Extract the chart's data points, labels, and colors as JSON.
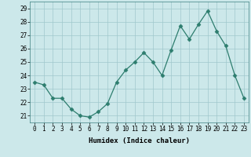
{
  "x": [
    0,
    1,
    2,
    3,
    4,
    5,
    6,
    7,
    8,
    9,
    10,
    11,
    12,
    13,
    14,
    15,
    16,
    17,
    18,
    19,
    20,
    21,
    22,
    23
  ],
  "y": [
    23.5,
    23.3,
    22.3,
    22.3,
    21.5,
    21.0,
    20.9,
    21.3,
    21.9,
    23.5,
    24.4,
    25.0,
    25.7,
    25.0,
    24.0,
    25.9,
    27.7,
    26.7,
    27.8,
    28.8,
    27.3,
    26.2,
    24.0,
    22.3
  ],
  "line_color": "#2d7d6e",
  "marker": "D",
  "marker_size": 2.5,
  "bg_color": "#cce8ea",
  "grid_color": "#a0c8cc",
  "xlabel": "Humidex (Indice chaleur)",
  "ylim": [
    20.5,
    29.5
  ],
  "xlim": [
    -0.5,
    23.5
  ],
  "yticks": [
    21,
    22,
    23,
    24,
    25,
    26,
    27,
    28,
    29
  ],
  "xticks": [
    0,
    1,
    2,
    3,
    4,
    5,
    6,
    7,
    8,
    9,
    10,
    11,
    12,
    13,
    14,
    15,
    16,
    17,
    18,
    19,
    20,
    21,
    22,
    23
  ],
  "label_fontsize": 6.5,
  "tick_fontsize": 5.5
}
